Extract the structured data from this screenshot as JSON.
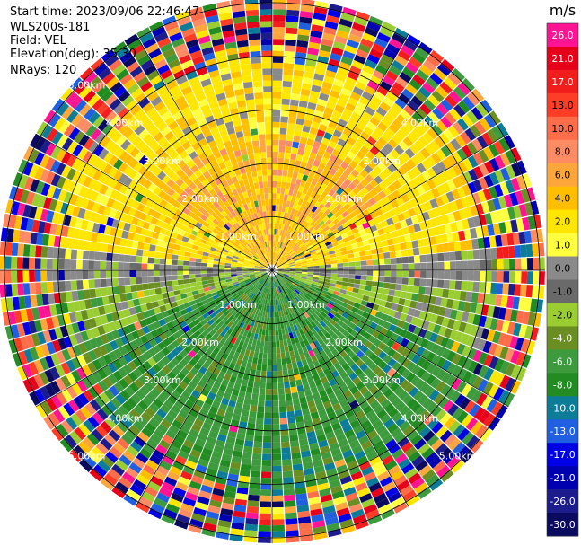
{
  "header": {
    "start_time": "Start time: 2023/09/06 22:46:47",
    "instrument": "WLS200s-181",
    "field": "Field: VEL",
    "elevation": "Elevation(deg): 35.30",
    "nrays": "NRays: 120"
  },
  "chart_data": {
    "type": "heatmap",
    "subtype": "polar-ppi",
    "field": "VEL",
    "units": "m/s",
    "nrays": 120,
    "elevation_deg": 35.3,
    "range_rings_km": [
      1,
      2,
      3,
      4,
      5
    ],
    "ring_labels": [
      "1.00km",
      "2.00km",
      "3.00km",
      "4.00km",
      "5.00km"
    ],
    "colorbar": {
      "label": "m/s",
      "tick_labels": [
        "26.0",
        "21.0",
        "17.0",
        "13.0",
        "10.0",
        "8.0",
        "6.0",
        "4.0",
        "2.0",
        "1.0",
        "0.0",
        "-1.0",
        "-2.0",
        "-4.0",
        "-6.0",
        "-8.0",
        "-10.0",
        "-13.0",
        "-17.0",
        "-21.0",
        "-26.0",
        "-30.0"
      ],
      "colors": [
        "#ff1493",
        "#e6001a",
        "#f21d1d",
        "#fd3d26",
        "#fd6d4a",
        "#fd8c64",
        "#fda63c",
        "#ffbf00",
        "#ffe600",
        "#ffff40",
        "#8a8a8a",
        "#6a6a6a",
        "#9acd32",
        "#6b8e23",
        "#3d9a3d",
        "#228b22",
        "#0d7c99",
        "#1f5fe0",
        "#0000e6",
        "#0000b0",
        "#1c1c8c",
        "#0a0a60"
      ]
    },
    "pattern_description": "approaching (negative, green) flow in southern half, receding (positive, yellow/orange) flow in northern half, noisy multi-color returns beyond ~4.2 km"
  }
}
